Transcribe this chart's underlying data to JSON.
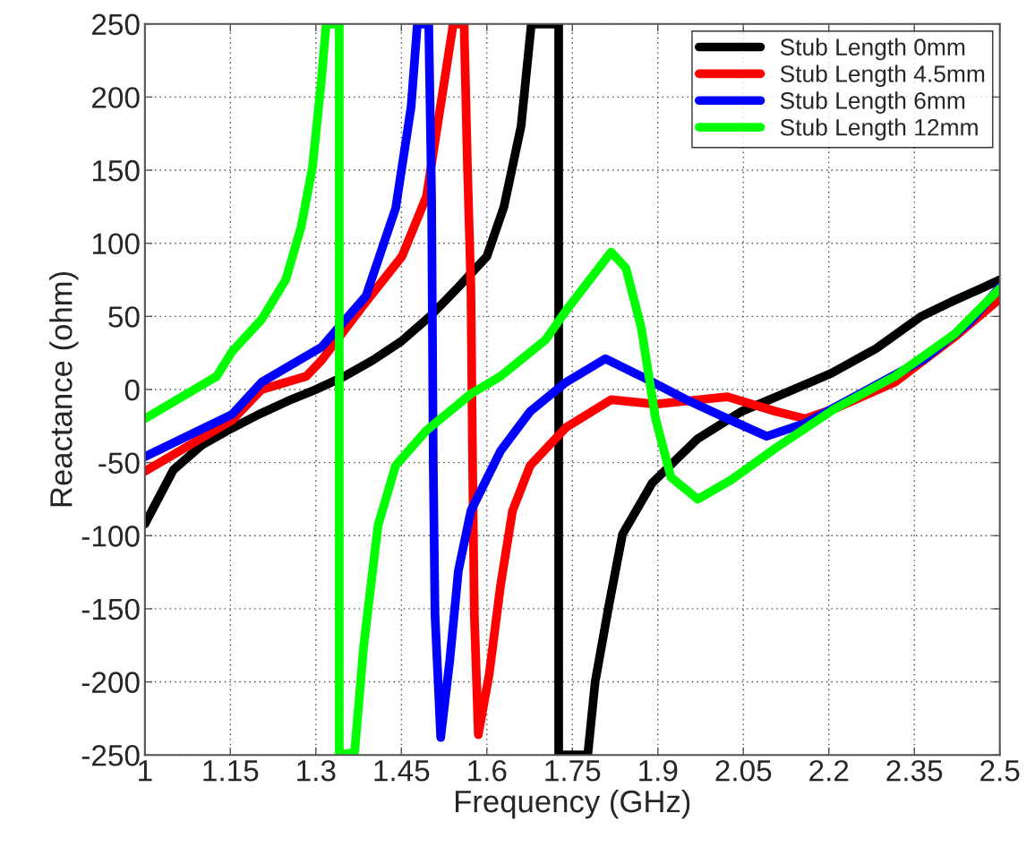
{
  "chart_data": {
    "type": "line",
    "xlabel": "Frequency (GHz)",
    "ylabel": "Reactance (ohm)",
    "xlim": [
      1,
      2.5
    ],
    "ylim": [
      -250,
      250
    ],
    "xticks": [
      1,
      1.15,
      1.3,
      1.45,
      1.6,
      1.75,
      1.9,
      2.05,
      2.2,
      2.35,
      2.5
    ],
    "yticks": [
      -250,
      -200,
      -150,
      -100,
      -50,
      0,
      50,
      100,
      150,
      200,
      250
    ],
    "grid": true,
    "legend": "top right",
    "line_style": "solid",
    "marker": "none",
    "series": [
      {
        "name": "Stub Length 0mm",
        "color": "#000000",
        "x": [
          1.0,
          1.05,
          1.1,
          1.15,
          1.2,
          1.25,
          1.3,
          1.35,
          1.4,
          1.45,
          1.5,
          1.55,
          1.6,
          1.63,
          1.66,
          1.678,
          1.726,
          1.726,
          1.777,
          1.79,
          1.813,
          1.838,
          1.89,
          1.969,
          2.047,
          2.126,
          2.204,
          2.283,
          2.362,
          2.415,
          2.467,
          2.5
        ],
        "values": [
          -92,
          -55,
          -38,
          -27,
          -17,
          -8,
          0,
          9,
          20,
          33,
          50,
          70,
          91,
          125,
          180,
          250,
          250,
          -250,
          -250,
          -200,
          -150,
          -99,
          -64,
          -34,
          -15,
          -2,
          11,
          28,
          50,
          60,
          69,
          75
        ]
      },
      {
        "name": "Stub Length 4.5mm",
        "color": "#ff0000",
        "x": [
          1.0,
          1.153,
          1.205,
          1.283,
          1.31,
          1.388,
          1.451,
          1.494,
          1.541,
          1.56,
          1.566,
          1.572,
          1.575,
          1.578,
          1.585,
          1.604,
          1.624,
          1.645,
          1.676,
          1.739,
          1.818,
          1.896,
          2.022,
          2.107,
          2.159,
          2.211,
          2.316,
          2.421,
          2.5
        ],
        "values": [
          -56,
          -21,
          0,
          9,
          20,
          60,
          91,
          132,
          250,
          250,
          152,
          70,
          -52,
          -154,
          -236,
          -195,
          -134,
          -83,
          -52,
          -26,
          -7,
          -10,
          -5,
          -15,
          -20,
          -13,
          5,
          36,
          62
        ]
      },
      {
        "name": "Stub Length 6mm",
        "color": "#0000ff",
        "x": [
          1.0,
          1.153,
          1.205,
          1.31,
          1.388,
          1.44,
          1.467,
          1.478,
          1.498,
          1.503,
          1.506,
          1.509,
          1.519,
          1.535,
          1.55,
          1.572,
          1.624,
          1.676,
          1.739,
          1.808,
          1.871,
          1.95,
          2.028,
          2.091,
          2.159,
          2.264,
          2.368,
          2.447,
          2.5
        ],
        "values": [
          -46,
          -17,
          5,
          29,
          64,
          124,
          193,
          250,
          250,
          132,
          -52,
          -154,
          -238,
          -185,
          -124,
          -83,
          -42,
          -15,
          5,
          21,
          9,
          -7,
          -21,
          -32,
          -23,
          -1,
          21,
          46,
          70
        ]
      },
      {
        "name": "Stub Length 12mm",
        "color": "#00ff00",
        "x": [
          1.0,
          1.126,
          1.153,
          1.205,
          1.247,
          1.274,
          1.294,
          1.31,
          1.318,
          1.341,
          1.341,
          1.368,
          1.384,
          1.409,
          1.44,
          1.494,
          1.572,
          1.624,
          1.703,
          1.739,
          1.818,
          1.844,
          1.871,
          1.896,
          1.923,
          1.97,
          2.028,
          2.107,
          2.211,
          2.316,
          2.421,
          2.5
        ],
        "values": [
          -20,
          9,
          26,
          48,
          75,
          111,
          152,
          213,
          250,
          250,
          -250,
          -248,
          -175,
          -93,
          -52,
          -28,
          -3,
          9,
          34,
          54,
          94,
          83,
          42,
          -20,
          -60,
          -75,
          -62,
          -40,
          -13,
          9,
          38,
          69
        ]
      }
    ]
  }
}
